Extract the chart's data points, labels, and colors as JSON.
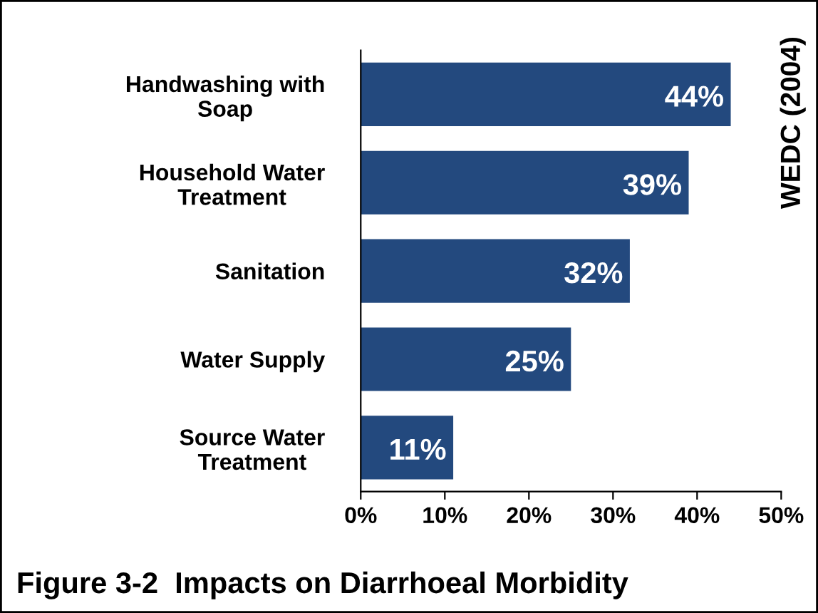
{
  "chart_data": {
    "type": "bar",
    "orientation": "horizontal",
    "title": "Figure 3-2  Impacts on Diarrhoeal Morbidity",
    "categories": [
      "Handwashing with\nSoap",
      "Household Water\nTreatment",
      "Sanitation",
      "Water Supply",
      "Source Water\nTreatment"
    ],
    "values": [
      44,
      39,
      32,
      25,
      11
    ],
    "value_labels": [
      "44%",
      "39%",
      "32%",
      "25%",
      "11%"
    ],
    "color": "#23497e",
    "xlim": [
      0,
      50
    ],
    "xticks": [
      {
        "value": 0,
        "label": "0%"
      },
      {
        "value": 10,
        "label": "10%"
      },
      {
        "value": 20,
        "label": "20%"
      },
      {
        "value": 30,
        "label": "30%"
      },
      {
        "value": 40,
        "label": "40%"
      },
      {
        "value": 50,
        "label": "50%"
      }
    ],
    "annotations": [
      "WEDC (2004)"
    ],
    "grid": false,
    "legend": false
  }
}
